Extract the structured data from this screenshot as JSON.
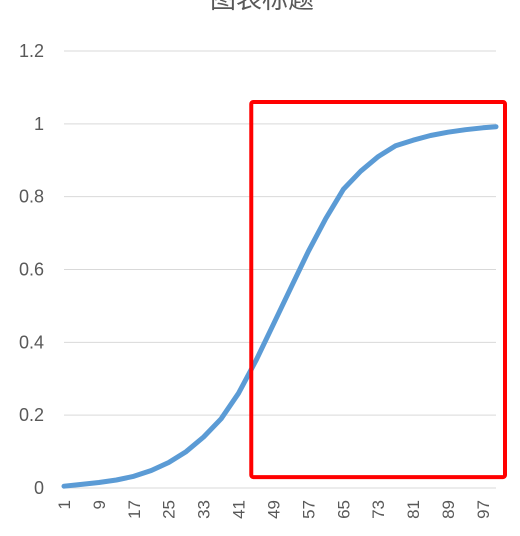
{
  "chart_data": {
    "type": "line",
    "title": "图表标题",
    "xlabel": "",
    "ylabel": "",
    "ylim": [
      0,
      1.2
    ],
    "yticks": [
      0,
      0.2,
      0.4,
      0.6,
      0.8,
      1,
      1.2
    ],
    "ytick_labels": [
      "0",
      "0.2",
      "0.4",
      "0.6",
      "0.8",
      "1",
      "1.2"
    ],
    "xtick_labels": [
      "1",
      "9",
      "17",
      "25",
      "33",
      "41",
      "49",
      "57",
      "65",
      "73",
      "81",
      "89",
      "97"
    ],
    "xlim": [
      1,
      100
    ],
    "grid": true,
    "legend": "none",
    "line_color": "#5B9BD5",
    "gridline_color": "#D9D9D9",
    "highlight_color": "#FF0000",
    "highlight_box": {
      "x_from": 43,
      "x_to": 100,
      "y_from": 0.03,
      "y_to": 1.06
    },
    "series": [
      {
        "x": [
          1,
          5,
          9,
          13,
          17,
          21,
          25,
          29,
          33,
          37,
          41,
          45,
          49,
          53,
          57,
          61,
          65,
          69,
          73,
          77,
          81,
          85,
          89,
          93,
          97,
          100
        ],
        "values": [
          0.005,
          0.01,
          0.015,
          0.022,
          0.032,
          0.048,
          0.07,
          0.1,
          0.14,
          0.19,
          0.26,
          0.35,
          0.45,
          0.55,
          0.65,
          0.74,
          0.82,
          0.87,
          0.91,
          0.94,
          0.955,
          0.968,
          0.977,
          0.984,
          0.989,
          0.992
        ]
      }
    ]
  }
}
